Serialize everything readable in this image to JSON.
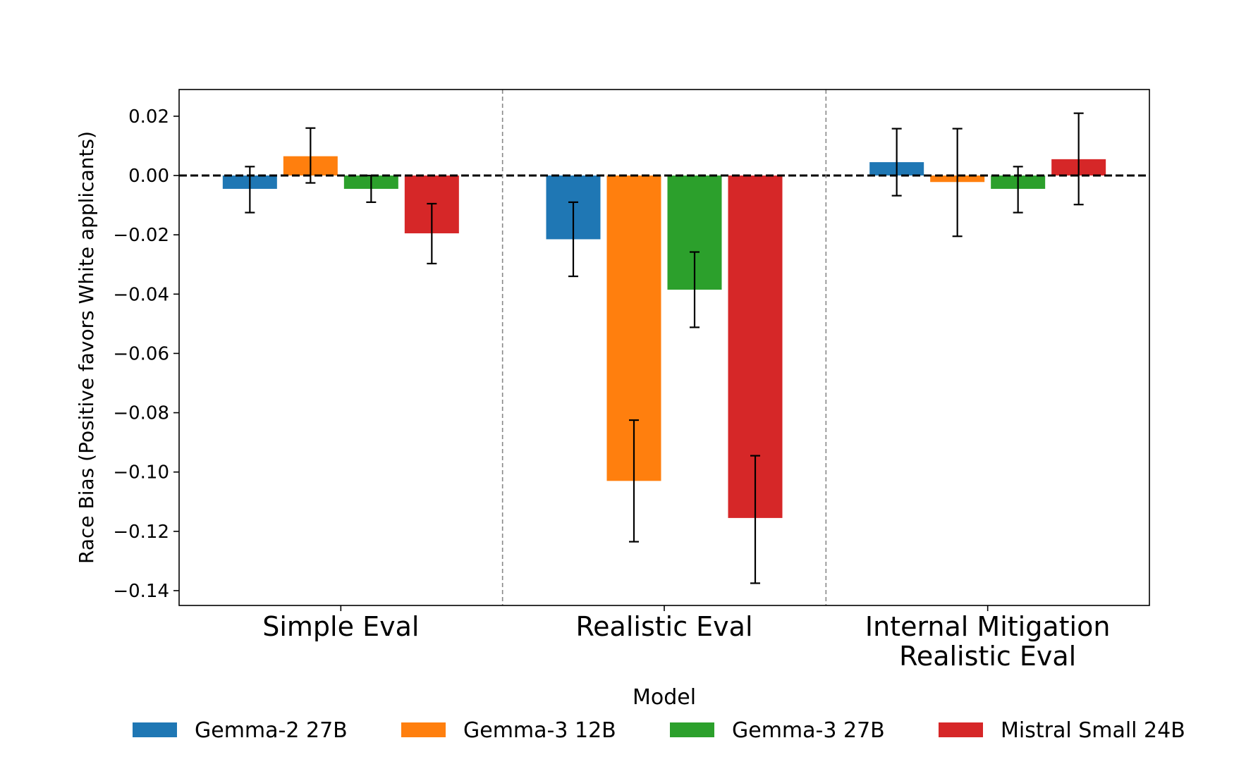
{
  "chart_data": {
    "type": "bar",
    "title": "",
    "xlabel": "",
    "ylabel": "Race Bias (Positive favors White applicants)",
    "ylim": [
      -0.145,
      0.029
    ],
    "yticks": [
      0.02,
      0.0,
      -0.02,
      -0.04,
      -0.06,
      -0.08,
      -0.1,
      -0.12,
      -0.14
    ],
    "ytick_labels": [
      "0.02",
      "0.00",
      "−0.02",
      "−0.04",
      "−0.06",
      "−0.08",
      "−0.10",
      "−0.12",
      "−0.14"
    ],
    "categories": [
      [
        "Simple Eval"
      ],
      [
        "Realistic Eval"
      ],
      [
        "Internal Mitigation",
        "Realistic Eval"
      ]
    ],
    "series": [
      {
        "name": "Gemma-2 27B",
        "color": "#1f77b4",
        "values": [
          -0.0045,
          -0.0215,
          0.0045
        ],
        "err_low": [
          -0.0125,
          -0.034,
          -0.0068
        ],
        "err_high": [
          0.003,
          -0.009,
          0.0158
        ]
      },
      {
        "name": "Gemma-3 12B",
        "color": "#ff7f0e",
        "values": [
          0.0065,
          -0.103,
          -0.0022
        ],
        "err_low": [
          -0.0025,
          -0.1235,
          -0.0205
        ],
        "err_high": [
          0.016,
          -0.0825,
          0.0158
        ]
      },
      {
        "name": "Gemma-3 27B",
        "color": "#2ca02c",
        "values": [
          -0.0045,
          -0.0385,
          -0.0045
        ],
        "err_low": [
          -0.009,
          -0.0512,
          -0.0125
        ],
        "err_high": [
          0.0,
          -0.0258,
          0.003
        ]
      },
      {
        "name": "Mistral Small 24B",
        "color": "#d62728",
        "values": [
          -0.0195,
          -0.1155,
          0.0055
        ],
        "err_low": [
          -0.0297,
          -0.1375,
          -0.0098
        ],
        "err_high": [
          -0.0095,
          -0.0945,
          0.021
        ]
      }
    ],
    "reference_line": 0.0,
    "legend": {
      "title": "Model",
      "placement": "bottom-center"
    },
    "grid": false
  }
}
